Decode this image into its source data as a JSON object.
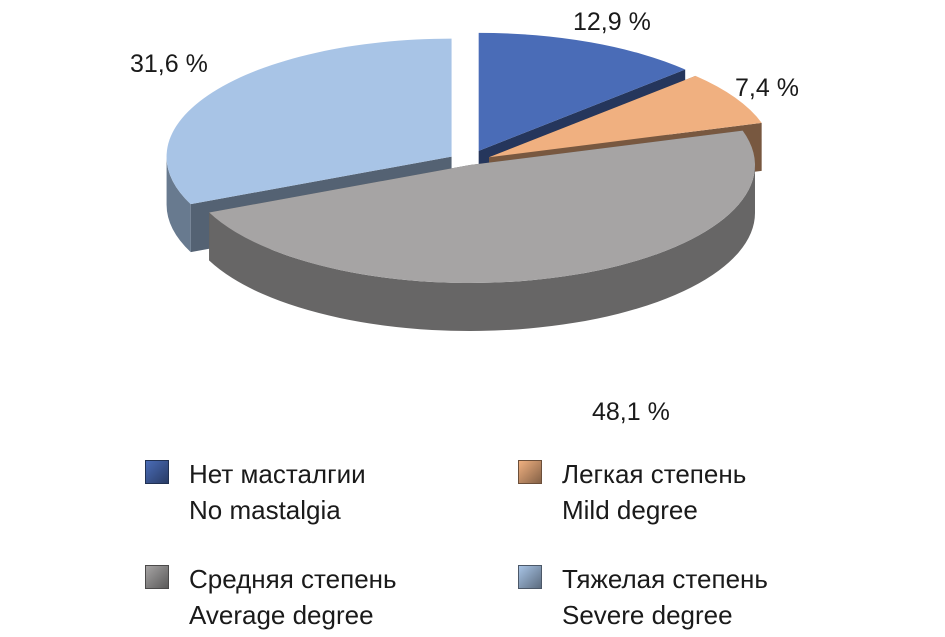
{
  "chart_data": {
    "type": "pie",
    "style": "3d-exploded",
    "unit": "%",
    "categories": [
      "Нет масталгии / No mastalgia",
      "Легкая степень / Mild degree",
      "Средняя степень / Average degree",
      "Тяжелая степень / Severe degree"
    ],
    "values": [
      12.9,
      7.4,
      48.1,
      31.6
    ],
    "slice_labels": [
      "12,9 %",
      "7,4 %",
      "48,1 %",
      "31,6 %"
    ],
    "colors": [
      "#4a6cb7",
      "#f0b080",
      "#a6a4a4",
      "#a8c4e6"
    ],
    "legend_placement": "bottom",
    "legend": [
      {
        "ru": "Нет масталгии",
        "en": "No mastalgia",
        "color": "#4a6cb7"
      },
      {
        "ru": "Легкая степень",
        "en": "Mild degree",
        "color": "#f0b080"
      },
      {
        "ru": "Средняя степень",
        "en": "Average degree",
        "color": "#a6a4a4"
      },
      {
        "ru": "Тяжелая степень",
        "en": "Severe degree",
        "color": "#a8c4e6"
      }
    ]
  }
}
